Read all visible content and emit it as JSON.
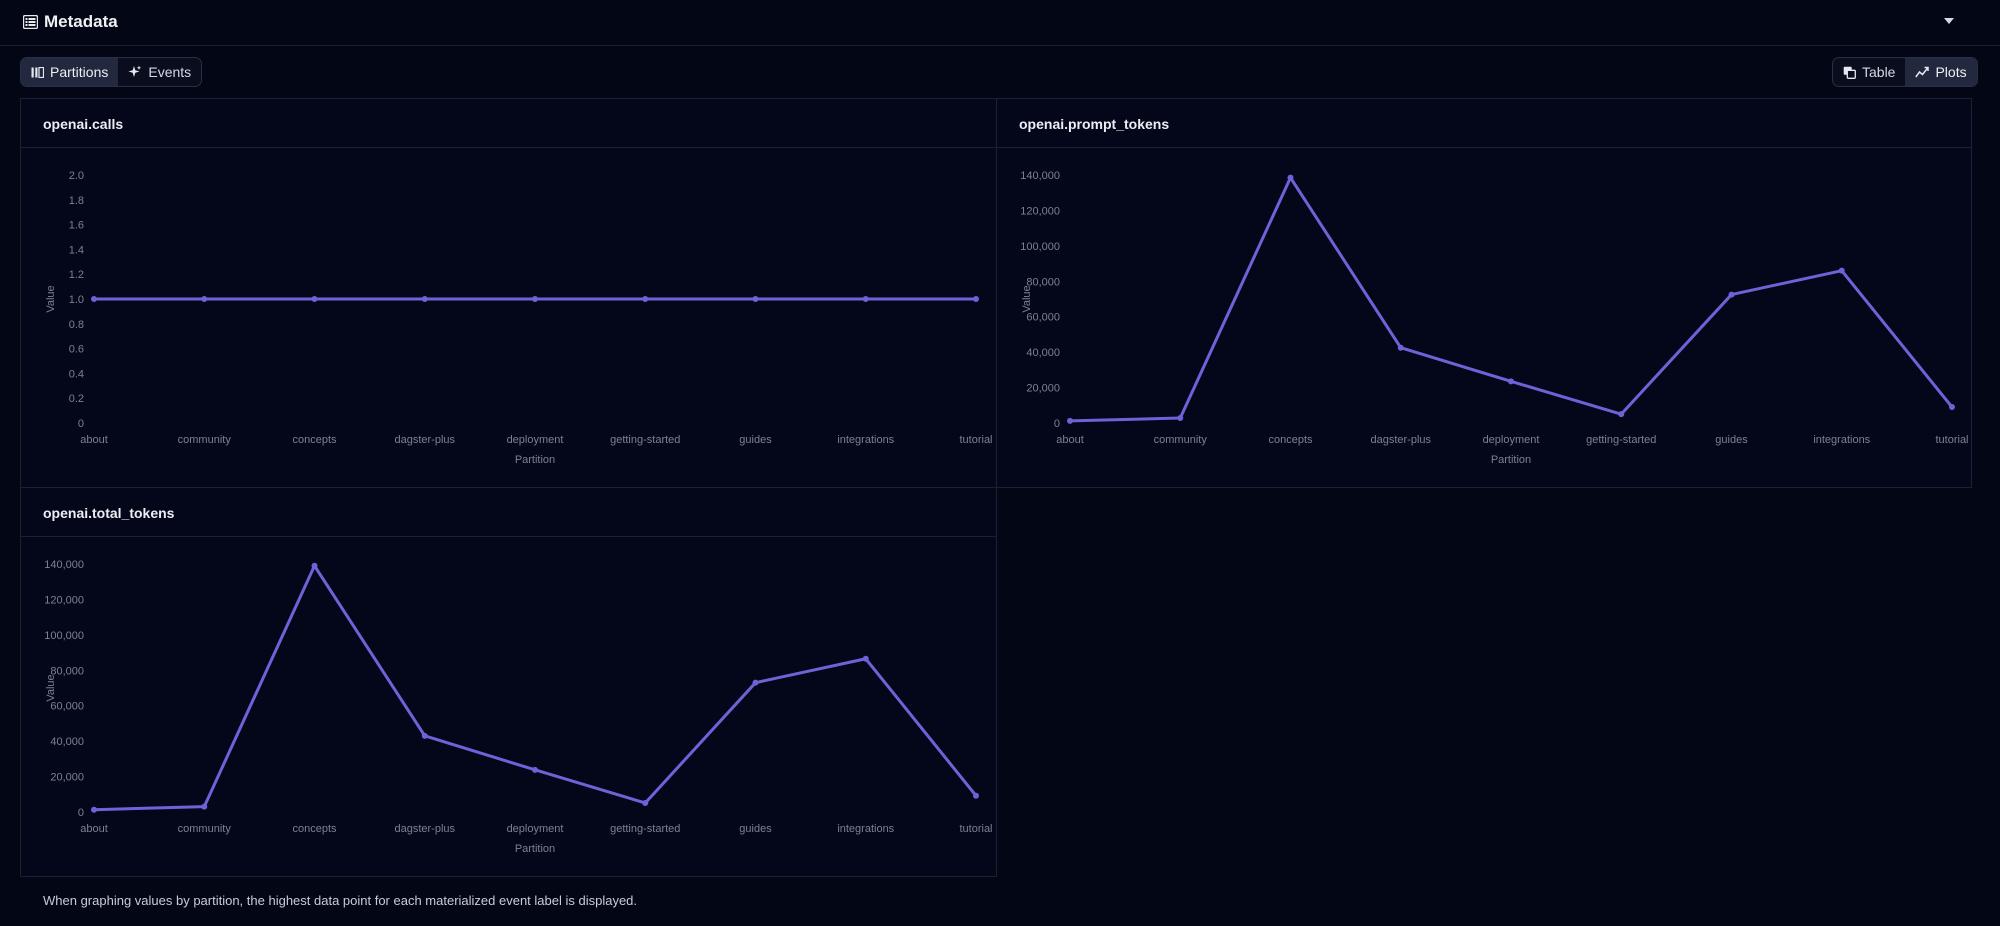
{
  "header": {
    "title": "Metadata",
    "icon": "table-list-icon"
  },
  "view_tabs": [
    {
      "label": "Partitions",
      "icon": "partitions-icon",
      "active": true
    },
    {
      "label": "Events",
      "icon": "sparkle-icon",
      "active": false
    }
  ],
  "mode_tabs": [
    {
      "label": "Table",
      "icon": "copy-icon",
      "active": false
    },
    {
      "label": "Plots",
      "icon": "line-chart-icon",
      "active": true
    }
  ],
  "colors": {
    "line": "#6f62d9",
    "grid_text": "#7c8092",
    "border": "#1c2031"
  },
  "chart_data": [
    {
      "type": "line",
      "title": "openai.calls",
      "xlabel": "Partition",
      "ylabel": "Value",
      "categories": [
        "about",
        "community",
        "concepts",
        "dagster-plus",
        "deployment",
        "getting-started",
        "guides",
        "integrations",
        "tutorial"
      ],
      "values": [
        1,
        1,
        1,
        1,
        1,
        1,
        1,
        1,
        1
      ],
      "ylim": [
        0,
        2
      ],
      "yticks": [
        "0",
        "0.2",
        "0.4",
        "0.6",
        "0.8",
        "1.0",
        "1.2",
        "1.4",
        "1.6",
        "1.8",
        "2.0"
      ],
      "grid": false
    },
    {
      "type": "line",
      "title": "openai.prompt_tokens",
      "xlabel": "Partition",
      "ylabel": "Value",
      "categories": [
        "about",
        "community",
        "concepts",
        "dagster-plus",
        "deployment",
        "getting-started",
        "guides",
        "integrations",
        "tutorial"
      ],
      "values": [
        1200,
        2800,
        138500,
        42500,
        23500,
        5000,
        72500,
        86000,
        9000
      ],
      "ylim": [
        0,
        140000
      ],
      "yticks": [
        "0",
        "20,000",
        "40,000",
        "60,000",
        "80,000",
        "100,000",
        "120,000",
        "140,000"
      ],
      "grid": false
    },
    {
      "type": "line",
      "title": "openai.total_tokens",
      "xlabel": "Partition",
      "ylabel": "Value",
      "categories": [
        "about",
        "community",
        "concepts",
        "dagster-plus",
        "deployment",
        "getting-started",
        "guides",
        "integrations",
        "tutorial"
      ],
      "values": [
        1300,
        3000,
        139000,
        43000,
        23800,
        5100,
        73000,
        86500,
        9200
      ],
      "ylim": [
        0,
        140000
      ],
      "yticks": [
        "0",
        "20,000",
        "40,000",
        "60,000",
        "80,000",
        "100,000",
        "120,000",
        "140,000"
      ],
      "grid": false
    }
  ],
  "footnote": "When graphing values by partition, the highest data point for each materialized event label is displayed."
}
